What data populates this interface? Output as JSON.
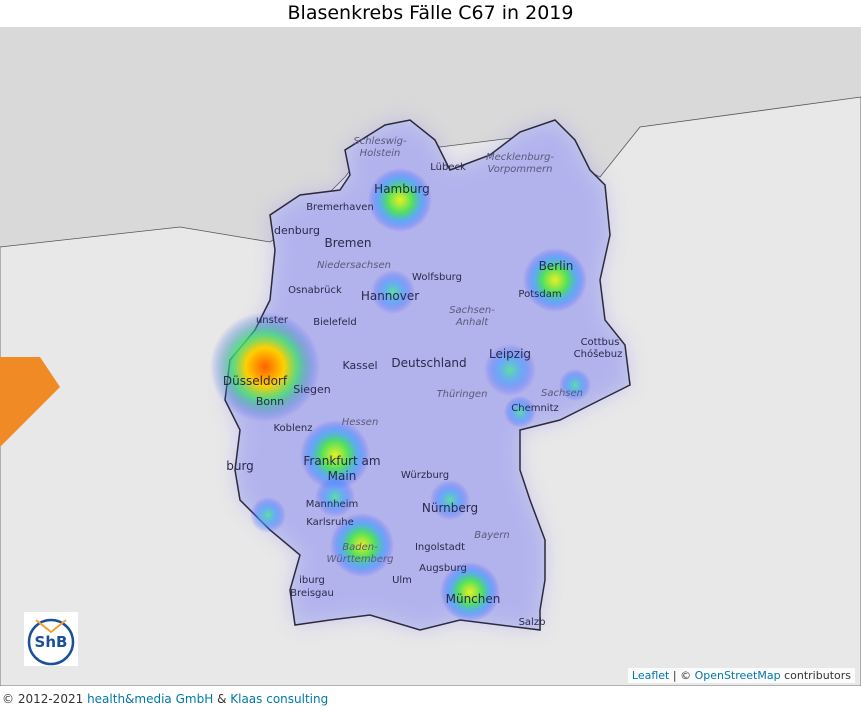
{
  "title": "Blasenkrebs Fälle C67 in 2019",
  "labels": [
    "Schleswig-",
    "Holstein",
    "Hamburg",
    "Lübeck",
    "Mecklenburg-",
    "Vorpommern",
    "Bremerhaven",
    "denburg",
    "Bremen",
    "Niedersachsen",
    "Osnabrück",
    "Hannover",
    "Wolfsburg",
    "Berlin",
    "Potsdam",
    "unster",
    "Bielefeld",
    "Sachsen-",
    "Anhalt",
    "Düsseldorf",
    "Siegen",
    "Bonn",
    "Kassel",
    "Deutschland",
    "Leipzig",
    "Cottbus",
    "Chóšebuz",
    "Sachsen",
    "Chemnitz",
    "Thüringen",
    "Koblenz",
    "Hessen",
    "Frankfurt am",
    "Main",
    "Würzburg",
    "Mannheim",
    "Nürnberg",
    "Karlsruhe",
    "Baden-",
    "Württemberg",
    "Bayern",
    "Ingolstadt",
    "Augsburg",
    "Ulm",
    "München",
    "iburg",
    "Breisgau",
    "burg",
    "Salzb"
  ],
  "logo": "ShB",
  "attribution": {
    "leaflet": "Leaflet",
    "separator": "|",
    "copyright": "©",
    "osm": "OpenStreetMap",
    "contributors": "contributors"
  },
  "footer": {
    "copyright": "© 2012-2021",
    "company": "health&media GmbH",
    "and": "&",
    "partner": "Klaas consulting"
  }
}
